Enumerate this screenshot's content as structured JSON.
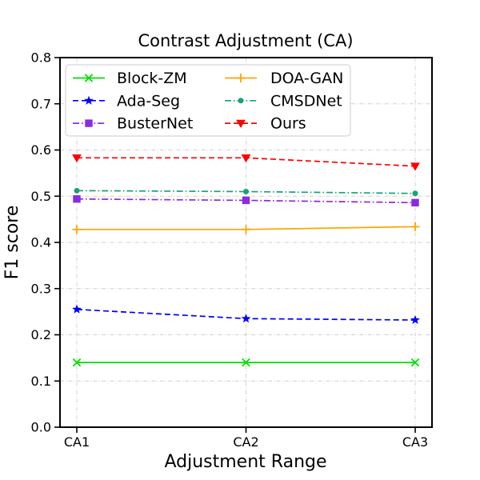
{
  "chart_data": {
    "type": "line",
    "title": "Contrast Adjustment (CA)",
    "xlabel": "Adjustment Range",
    "ylabel": "F1 score",
    "categories": [
      "CA1",
      "CA2",
      "CA3"
    ],
    "ylim": [
      0.0,
      0.8
    ],
    "ytick_labels": [
      "0.0",
      "0.1",
      "0.2",
      "0.3",
      "0.4",
      "0.5",
      "0.6",
      "0.7",
      "0.8"
    ],
    "grid": true,
    "legend": {
      "position": "upper left",
      "columns": 2
    },
    "series": [
      {
        "name": "Block-ZM",
        "color": "#00e000",
        "marker": "x",
        "linestyle": "solid",
        "values": [
          0.14,
          0.14,
          0.14
        ]
      },
      {
        "name": "Ada-Seg",
        "color": "#0000ff",
        "marker": "star",
        "linestyle": "dashed",
        "values": [
          0.255,
          0.235,
          0.232
        ]
      },
      {
        "name": "BusterNet",
        "color": "#8a2be2",
        "marker": "square",
        "linestyle": "dashdot",
        "values": [
          0.494,
          0.491,
          0.486
        ]
      },
      {
        "name": "DOA-GAN",
        "color": "#ffa500",
        "marker": "plus",
        "linestyle": "solid",
        "values": [
          0.428,
          0.428,
          0.434
        ]
      },
      {
        "name": "CMSDNet",
        "color": "#16a472",
        "marker": "circle",
        "linestyle": "dashdot",
        "values": [
          0.512,
          0.51,
          0.506
        ]
      },
      {
        "name": "Ours",
        "color": "#ff0000",
        "marker": "triangle-down",
        "linestyle": "dashed",
        "values": [
          0.583,
          0.583,
          0.565
        ]
      }
    ]
  }
}
